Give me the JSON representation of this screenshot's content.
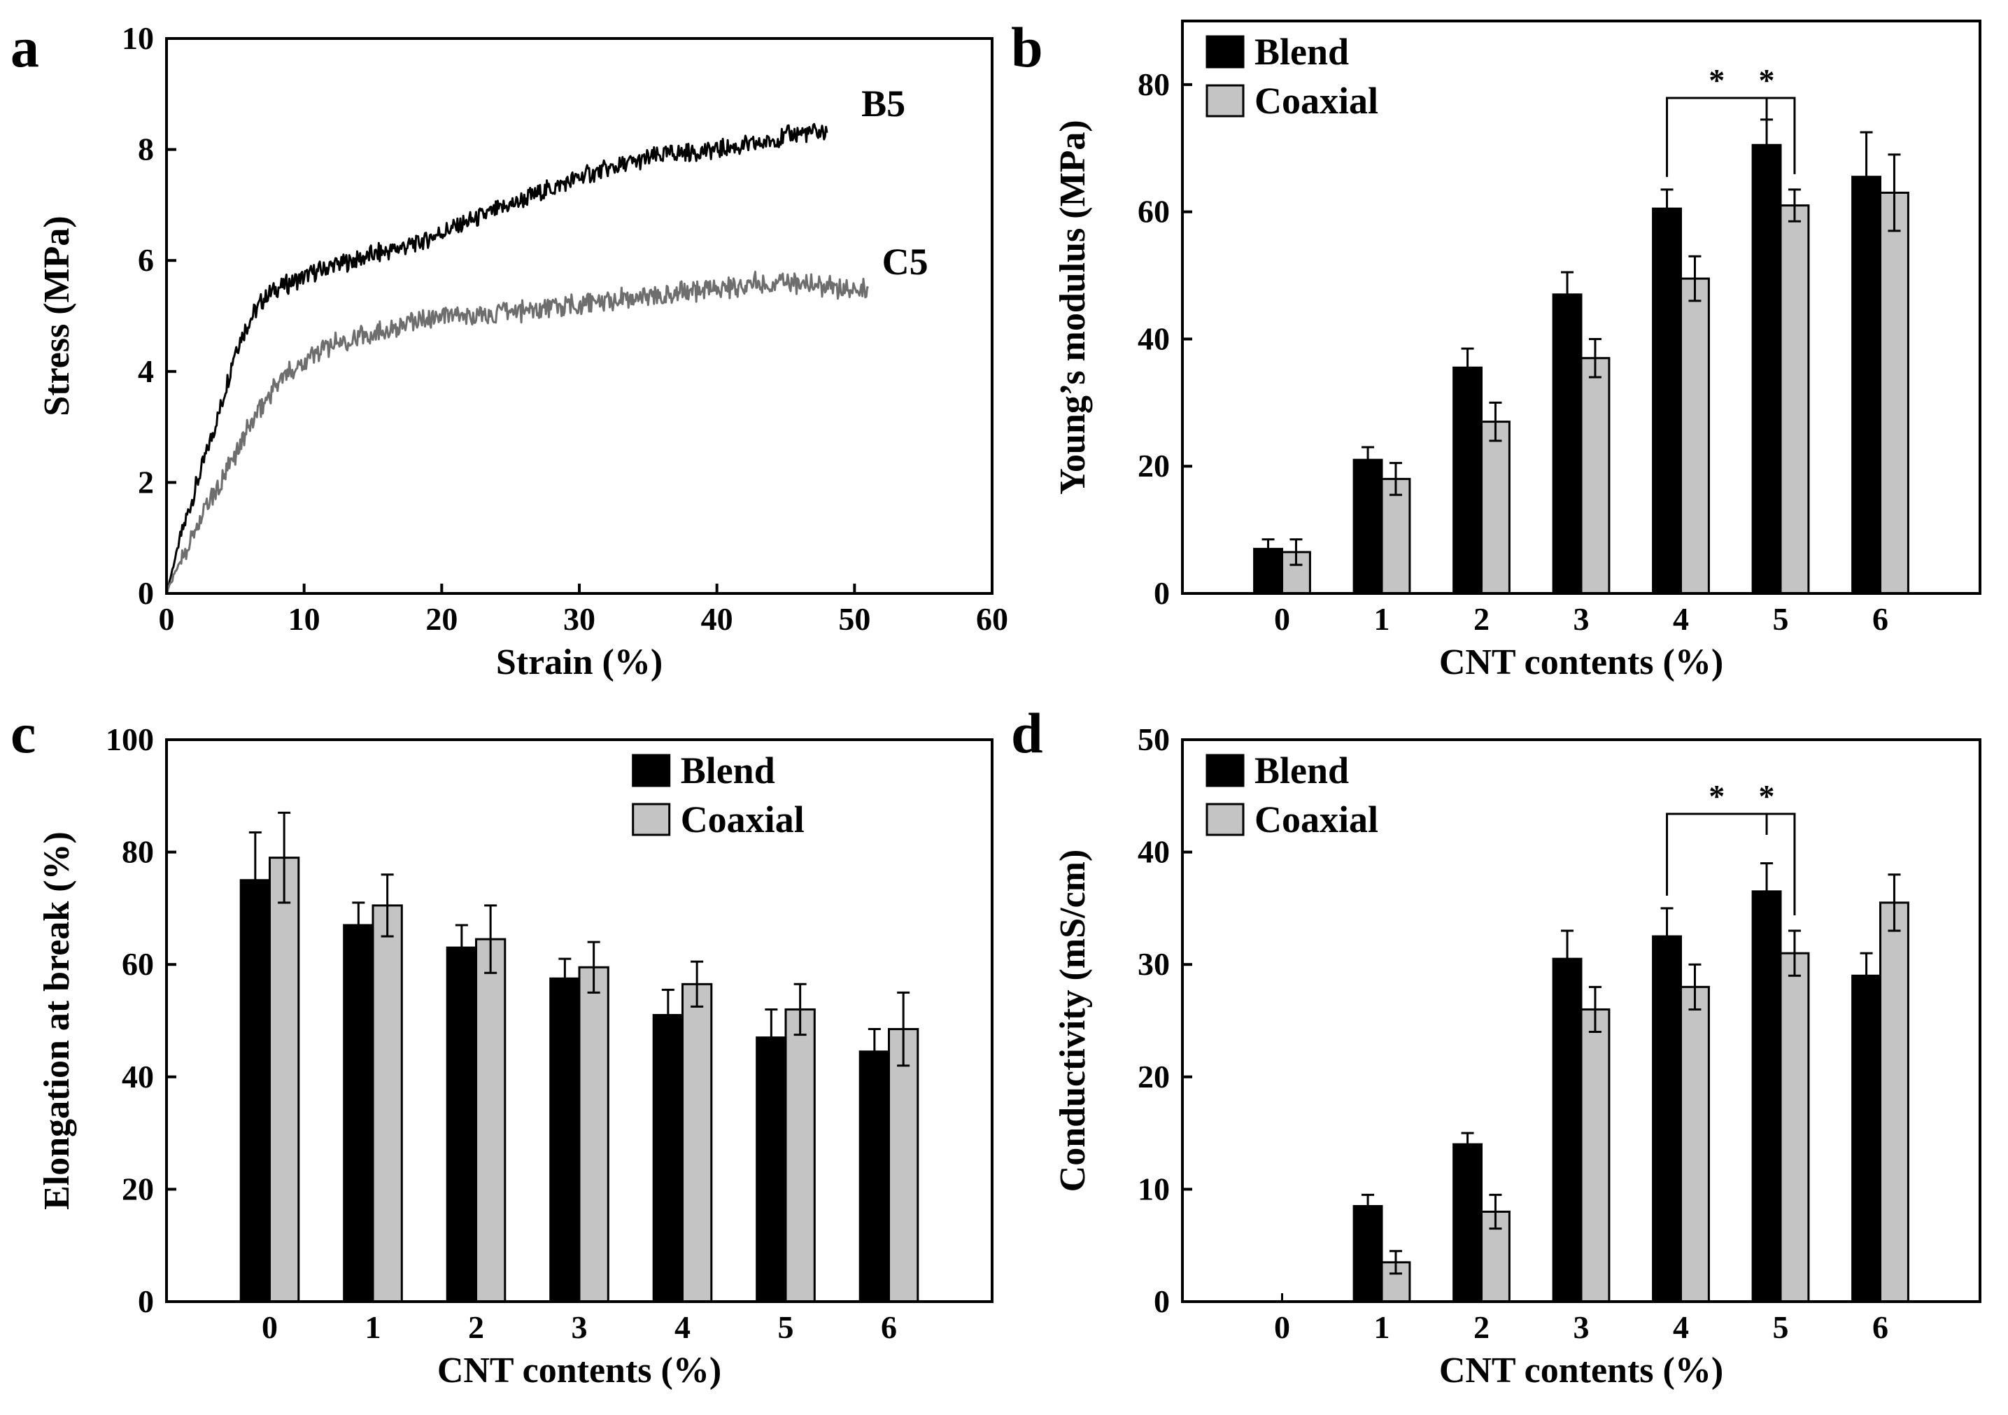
{
  "colors": {
    "blend": "#000000",
    "coaxial": "#c4c4c4",
    "b5_line": "#000000",
    "c5_line": "#6e6e6e",
    "axis": "#000000"
  },
  "chart_data": [
    {
      "panel": "a",
      "type": "line",
      "title": "",
      "xlabel": "Strain (%)",
      "ylabel": "Stress (MPa)",
      "xlim": [
        0,
        60
      ],
      "ylim": [
        0,
        10
      ],
      "xticks": [
        0,
        10,
        20,
        30,
        40,
        50,
        60
      ],
      "yticks": [
        0,
        2,
        4,
        6,
        8,
        10
      ],
      "series": [
        {
          "name": "B5",
          "label": "B5",
          "color": "#000000",
          "x": [
            0,
            1,
            2,
            3,
            4,
            5,
            6,
            7,
            8,
            10,
            12,
            15,
            18,
            20,
            22,
            25,
            28,
            30,
            33,
            36,
            40,
            43,
            46,
            48
          ],
          "y": [
            0,
            1.0,
            1.8,
            2.6,
            3.4,
            4.4,
            4.9,
            5.3,
            5.5,
            5.7,
            5.9,
            6.1,
            6.3,
            6.5,
            6.7,
            7.0,
            7.3,
            7.5,
            7.7,
            7.9,
            8.0,
            8.1,
            8.3,
            8.3
          ]
        },
        {
          "name": "C5",
          "label": "C5",
          "color": "#6e6e6e",
          "x": [
            0,
            1,
            2,
            3,
            4,
            5,
            6,
            7,
            8,
            10,
            12,
            15,
            18,
            20,
            23,
            26,
            30,
            33,
            36,
            40,
            43,
            46,
            49,
            51
          ],
          "y": [
            0,
            0.6,
            1.1,
            1.6,
            2.0,
            2.5,
            3.0,
            3.4,
            3.8,
            4.2,
            4.5,
            4.7,
            4.9,
            5.0,
            5.0,
            5.1,
            5.2,
            5.3,
            5.4,
            5.5,
            5.6,
            5.6,
            5.5,
            5.5
          ]
        }
      ]
    },
    {
      "panel": "b",
      "type": "bar",
      "title": "",
      "xlabel": "CNT contents (%)",
      "ylabel": "Young’s modulus (MPa)",
      "ylim": [
        0,
        90
      ],
      "yticks": [
        0,
        20,
        40,
        60,
        80
      ],
      "categories": [
        "0",
        "1",
        "2",
        "3",
        "4",
        "5",
        "6"
      ],
      "series": [
        {
          "name": "Blend",
          "values": [
            7,
            21,
            35.5,
            47,
            60.5,
            70.5,
            65.5
          ],
          "errors": [
            1.5,
            2,
            3,
            3.5,
            3,
            4,
            7
          ]
        },
        {
          "name": "Coaxial",
          "values": [
            6.5,
            18,
            27,
            37,
            49.5,
            61,
            63
          ],
          "errors": [
            2,
            2.5,
            3,
            3,
            3.5,
            2.5,
            6
          ]
        }
      ],
      "legend": [
        "Blend",
        "Coaxial"
      ],
      "significance": {
        "from": "4",
        "to": "5",
        "marks": [
          "*",
          "*"
        ]
      }
    },
    {
      "panel": "c",
      "type": "bar",
      "title": "",
      "xlabel": "CNT contents (%)",
      "ylabel": "Elongation at break (%)",
      "ylim": [
        0,
        100
      ],
      "yticks": [
        0,
        20,
        40,
        60,
        80,
        100
      ],
      "categories": [
        "0",
        "1",
        "2",
        "3",
        "4",
        "5",
        "6"
      ],
      "series": [
        {
          "name": "Blend",
          "values": [
            75,
            67,
            63,
            57.5,
            51,
            47,
            44.5
          ],
          "errors": [
            8.5,
            4,
            4,
            3.5,
            4.5,
            5,
            4
          ]
        },
        {
          "name": "Coaxial",
          "values": [
            79,
            70.5,
            64.5,
            59.5,
            56.5,
            52,
            48.5
          ],
          "errors": [
            8,
            5.5,
            6,
            4.5,
            4,
            4.5,
            6.5
          ]
        }
      ],
      "legend": [
        "Blend",
        "Coaxial"
      ]
    },
    {
      "panel": "d",
      "type": "bar",
      "title": "",
      "xlabel": "CNT contents (%)",
      "ylabel": "Conductivity (mS/cm)",
      "ylim": [
        0,
        50
      ],
      "yticks": [
        0,
        10,
        20,
        30,
        40,
        50
      ],
      "categories": [
        "0",
        "1",
        "2",
        "3",
        "4",
        "5",
        "6"
      ],
      "series": [
        {
          "name": "Blend",
          "values": [
            0,
            8.5,
            14,
            30.5,
            32.5,
            36.5,
            29
          ],
          "errors": [
            0,
            1,
            1,
            2.5,
            2.5,
            2.5,
            2
          ]
        },
        {
          "name": "Coaxial",
          "values": [
            0,
            3.5,
            8,
            26,
            28,
            31,
            35.5
          ],
          "errors": [
            0,
            1,
            1.5,
            2,
            2,
            2,
            2.5
          ]
        }
      ],
      "legend": [
        "Blend",
        "Coaxial"
      ],
      "significance": {
        "from": "4",
        "to": "5",
        "marks": [
          "*",
          "*"
        ]
      }
    }
  ]
}
